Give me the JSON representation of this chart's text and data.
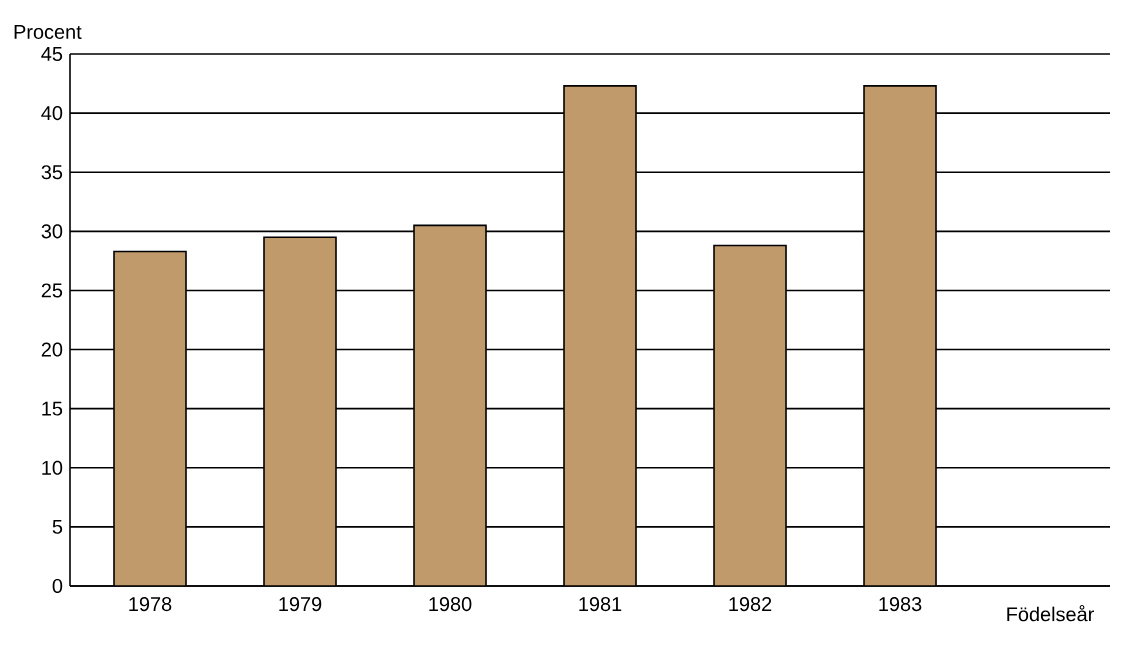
{
  "chart_data": {
    "type": "bar",
    "xlabel": "Födelseår",
    "ylabel": "Procent",
    "categories": [
      "1978",
      "1979",
      "1980",
      "1981",
      "1982",
      "1983"
    ],
    "values": [
      28.3,
      29.5,
      30.5,
      42.3,
      28.8,
      42.3
    ],
    "color": "#c19a6b",
    "ylim": [
      0,
      45
    ],
    "yticks": [
      0,
      5,
      10,
      15,
      20,
      25,
      30,
      35,
      40,
      45
    ],
    "grid": "y"
  }
}
